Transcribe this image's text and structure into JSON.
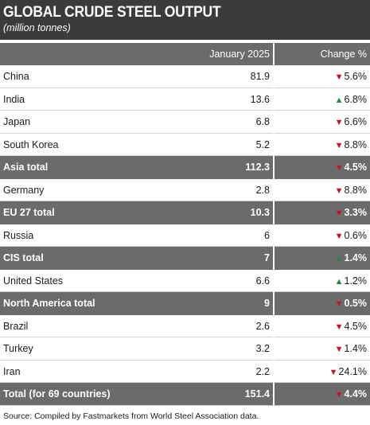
{
  "header": {
    "title": "GLOBAL CRUDE STEEL OUTPUT",
    "subtitle": "(million tonnes)"
  },
  "columns": {
    "period": "January 2025",
    "change": "Change %"
  },
  "colors": {
    "header_bg": "#3b3b3d",
    "band_bg": "#6b6b6d",
    "down": "#c0161f",
    "up": "#1f8a3a"
  },
  "rows": [
    {
      "name": "China",
      "value": "81.9",
      "dir": "down",
      "change": "5.6%",
      "total": false
    },
    {
      "name": "India",
      "value": "13.6",
      "dir": "up",
      "change": "6.8%",
      "total": false
    },
    {
      "name": "Japan",
      "value": "6.8",
      "dir": "down",
      "change": "6.6%",
      "total": false
    },
    {
      "name": "South Korea",
      "value": "5.2",
      "dir": "down",
      "change": "8.8%",
      "total": false
    },
    {
      "name": "Asia total",
      "value": "112.3",
      "dir": "down",
      "change": "4.5%",
      "total": true
    },
    {
      "name": "Germany",
      "value": "2.8",
      "dir": "down",
      "change": "8.8%",
      "total": false
    },
    {
      "name": "EU 27 total",
      "value": "10.3",
      "dir": "down",
      "change": "3.3%",
      "total": true
    },
    {
      "name": "Russia",
      "value": "6",
      "dir": "down",
      "change": "0.6%",
      "total": false
    },
    {
      "name": "CIS total",
      "value": "7",
      "dir": "up",
      "change": "1.4%",
      "total": true
    },
    {
      "name": "United States",
      "value": "6.6",
      "dir": "up",
      "change": "1.2%",
      "total": false
    },
    {
      "name": "North America total",
      "value": "9",
      "dir": "down",
      "change": "0.5%",
      "total": true
    },
    {
      "name": "Brazil",
      "value": "2.6",
      "dir": "down",
      "change": "4.5%",
      "total": false
    },
    {
      "name": "Turkey",
      "value": "3.2",
      "dir": "down",
      "change": "1.4%",
      "total": false
    },
    {
      "name": "Iran",
      "value": "2.2",
      "dir": "down",
      "change": "24.1%",
      "total": false
    },
    {
      "name": "Total (for 69 countries)",
      "value": "151.4",
      "dir": "down",
      "change": "4.4%",
      "total": true
    }
  ],
  "footer": {
    "source": "Source: Compiled by Fastmarkets from World Steel Association data."
  }
}
